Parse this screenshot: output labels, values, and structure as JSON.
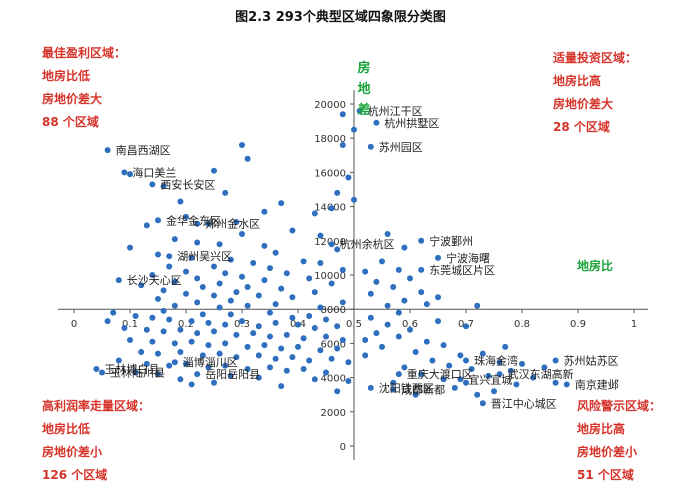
{
  "chart_data": {
    "type": "scatter",
    "title": "图2.3  293个典型区域四象限分类图",
    "xlabel": "地房比",
    "ylabel": "房地差",
    "xlim": [
      0,
      1
    ],
    "ylim": [
      0,
      21000
    ],
    "x_origin_y_value": 8000,
    "y_axis_x_value": 0.5,
    "x_ticks": [
      "0",
      "0.1",
      "0.2",
      "0.3",
      "0.4",
      "0.5",
      "0.6",
      "0.7",
      "0.8",
      "0.9",
      "1"
    ],
    "y_ticks": [
      "0",
      "2000",
      "4000",
      "6000",
      "8000",
      "10000",
      "12000",
      "14000",
      "16000",
      "18000",
      "20000"
    ],
    "color": "#2f6fbf",
    "quadrant_labels": [
      {
        "id": "tl",
        "lines": [
          "最佳盈利区域：",
          "地房比低",
          "房地价差大",
          "88 个区域"
        ]
      },
      {
        "id": "tr",
        "lines": [
          "适量投资区域：",
          "地房比高",
          "房地价差大",
          "28 个区域"
        ]
      },
      {
        "id": "bl",
        "lines": [
          "高利润率走量区域：",
          "地房比低",
          "房地价差小",
          "126 个区域"
        ]
      },
      {
        "id": "br",
        "lines": [
          "风险警示区域：",
          "地房比高",
          "房地价差小",
          "51 个区域"
        ]
      }
    ],
    "labeled_points": [
      {
        "name": "杭州江干区",
        "x": 0.51,
        "y": 19600
      },
      {
        "name": "杭州拱墅区",
        "x": 0.54,
        "y": 18900
      },
      {
        "name": "苏州园区",
        "x": 0.53,
        "y": 17500
      },
      {
        "name": "南昌西湖区",
        "x": 0.06,
        "y": 17300
      },
      {
        "name": "海口美兰",
        "x": 0.09,
        "y": 16000
      },
      {
        "name": "西安长安区",
        "x": 0.14,
        "y": 15300
      },
      {
        "name": "金华金东区",
        "x": 0.15,
        "y": 13200
      },
      {
        "name": "郑州金水区",
        "x": 0.22,
        "y": 13000
      },
      {
        "name": "宁波鄞州",
        "x": 0.62,
        "y": 12000
      },
      {
        "name": "杭州余杭区",
        "x": 0.46,
        "y": 11800
      },
      {
        "name": "宁波海曙",
        "x": 0.65,
        "y": 11000
      },
      {
        "name": "湖州吴兴区",
        "x": 0.17,
        "y": 11100
      },
      {
        "name": "东莞城区片区",
        "x": 0.62,
        "y": 10300
      },
      {
        "name": "长沙天心区",
        "x": 0.08,
        "y": 9700
      },
      {
        "name": "珠海金湾",
        "x": 0.7,
        "y": 5000
      },
      {
        "name": "苏州姑苏区",
        "x": 0.86,
        "y": 5000
      },
      {
        "name": "淄博淄川区",
        "x": 0.18,
        "y": 4900
      },
      {
        "name": "重庆大渡口区",
        "x": 0.58,
        "y": 4200
      },
      {
        "name": "武汉东湖高新",
        "x": 0.76,
        "y": 4200
      },
      {
        "name": "玉林博白县",
        "x": 0.04,
        "y": 4500
      },
      {
        "name": "岳阳岳阳县",
        "x": 0.22,
        "y": 4200
      },
      {
        "name": "宜兴宜城",
        "x": 0.69,
        "y": 3900
      },
      {
        "name": "南京建邺",
        "x": 0.88,
        "y": 3600
      },
      {
        "name": "玉林陆川县",
        "x": 0.05,
        "y": 4300
      },
      {
        "name": "成都新都",
        "x": 0.57,
        "y": 3300
      },
      {
        "name": "沈阳铁西区",
        "x": 0.53,
        "y": 3400
      },
      {
        "name": "晋江中心城区",
        "x": 0.73,
        "y": 2500
      }
    ],
    "points": [
      [
        0.48,
        19400
      ],
      [
        0.5,
        18500
      ],
      [
        0.48,
        17600
      ],
      [
        0.3,
        17600
      ],
      [
        0.31,
        16800
      ],
      [
        0.25,
        16100
      ],
      [
        0.1,
        15900
      ],
      [
        0.49,
        15700
      ],
      [
        0.16,
        15200
      ],
      [
        0.47,
        14800
      ],
      [
        0.27,
        14800
      ],
      [
        0.19,
        14300
      ],
      [
        0.37,
        14200
      ],
      [
        0.5,
        14400
      ],
      [
        0.43,
        13600
      ],
      [
        0.34,
        13700
      ],
      [
        0.46,
        13900
      ],
      [
        0.2,
        13400
      ],
      [
        0.24,
        13000
      ],
      [
        0.29,
        13100
      ],
      [
        0.13,
        12900
      ],
      [
        0.39,
        12600
      ],
      [
        0.44,
        12300
      ],
      [
        0.3,
        12400
      ],
      [
        0.18,
        12100
      ],
      [
        0.22,
        11900
      ],
      [
        0.26,
        11800
      ],
      [
        0.34,
        11700
      ],
      [
        0.1,
        11600
      ],
      [
        0.47,
        11500
      ],
      [
        0.36,
        11300
      ],
      [
        0.15,
        11200
      ],
      [
        0.21,
        11000
      ],
      [
        0.28,
        10900
      ],
      [
        0.41,
        10800
      ],
      [
        0.32,
        10700
      ],
      [
        0.44,
        10700
      ],
      [
        0.17,
        10500
      ],
      [
        0.25,
        10500
      ],
      [
        0.35,
        10400
      ],
      [
        0.48,
        10300
      ],
      [
        0.2,
        10200
      ],
      [
        0.27,
        10100
      ],
      [
        0.38,
        10100
      ],
      [
        0.14,
        10000
      ],
      [
        0.3,
        9900
      ],
      [
        0.22,
        9800
      ],
      [
        0.42,
        9800
      ],
      [
        0.34,
        9700
      ],
      [
        0.18,
        9600
      ],
      [
        0.26,
        9500
      ],
      [
        0.46,
        9500
      ],
      [
        0.12,
        9400
      ],
      [
        0.23,
        9300
      ],
      [
        0.31,
        9300
      ],
      [
        0.37,
        9200
      ],
      [
        0.16,
        9100
      ],
      [
        0.29,
        9000
      ],
      [
        0.43,
        9000
      ],
      [
        0.2,
        8900
      ],
      [
        0.25,
        8800
      ],
      [
        0.33,
        8800
      ],
      [
        0.39,
        8700
      ],
      [
        0.15,
        8600
      ],
      [
        0.28,
        8500
      ],
      [
        0.22,
        8400
      ],
      [
        0.48,
        8400
      ],
      [
        0.36,
        8300
      ],
      [
        0.18,
        8200
      ],
      [
        0.31,
        8200
      ],
      [
        0.44,
        8100
      ],
      [
        0.26,
        8100
      ],
      [
        0.56,
        12400
      ],
      [
        0.59,
        11600
      ],
      [
        0.55,
        10800
      ],
      [
        0.58,
        10300
      ],
      [
        0.6,
        9800
      ],
      [
        0.54,
        9600
      ],
      [
        0.57,
        9300
      ],
      [
        0.62,
        9000
      ],
      [
        0.53,
        8900
      ],
      [
        0.65,
        8700
      ],
      [
        0.59,
        8500
      ],
      [
        0.72,
        8200
      ],
      [
        0.56,
        8200
      ],
      [
        0.63,
        8300
      ],
      [
        0.52,
        10200
      ],
      [
        0.07,
        7800
      ],
      [
        0.11,
        7600
      ],
      [
        0.14,
        7500
      ],
      [
        0.17,
        7400
      ],
      [
        0.21,
        7300
      ],
      [
        0.24,
        7200
      ],
      [
        0.27,
        7100
      ],
      [
        0.3,
        7300
      ],
      [
        0.33,
        7000
      ],
      [
        0.36,
        7200
      ],
      [
        0.4,
        7100
      ],
      [
        0.43,
        6900
      ],
      [
        0.47,
        7000
      ],
      [
        0.09,
        6900
      ],
      [
        0.13,
        6800
      ],
      [
        0.16,
        6700
      ],
      [
        0.19,
        6800
      ],
      [
        0.22,
        6600
      ],
      [
        0.25,
        6700
      ],
      [
        0.29,
        6500
      ],
      [
        0.32,
        6600
      ],
      [
        0.35,
        6400
      ],
      [
        0.38,
        6500
      ],
      [
        0.41,
        6300
      ],
      [
        0.45,
        6400
      ],
      [
        0.48,
        6200
      ],
      [
        0.1,
        6200
      ],
      [
        0.14,
        6100
      ],
      [
        0.18,
        6000
      ],
      [
        0.21,
        6100
      ],
      [
        0.24,
        5900
      ],
      [
        0.27,
        6000
      ],
      [
        0.31,
        5800
      ],
      [
        0.34,
        5900
      ],
      [
        0.37,
        5700
      ],
      [
        0.4,
        5800
      ],
      [
        0.44,
        5600
      ],
      [
        0.47,
        5700
      ],
      [
        0.12,
        5500
      ],
      [
        0.15,
        5400
      ],
      [
        0.19,
        5500
      ],
      [
        0.23,
        5300
      ],
      [
        0.26,
        5400
      ],
      [
        0.29,
        5200
      ],
      [
        0.33,
        5300
      ],
      [
        0.36,
        5100
      ],
      [
        0.39,
        5200
      ],
      [
        0.42,
        5000
      ],
      [
        0.46,
        5100
      ],
      [
        0.49,
        4900
      ],
      [
        0.08,
        5000
      ],
      [
        0.13,
        4800
      ],
      [
        0.17,
        4700
      ],
      [
        0.2,
        4800
      ],
      [
        0.24,
        4600
      ],
      [
        0.27,
        4700
      ],
      [
        0.31,
        4500
      ],
      [
        0.35,
        4600
      ],
      [
        0.38,
        4400
      ],
      [
        0.41,
        4500
      ],
      [
        0.45,
        4300
      ],
      [
        0.11,
        4300
      ],
      [
        0.15,
        4200
      ],
      [
        0.28,
        4100
      ],
      [
        0.33,
        4000
      ],
      [
        0.43,
        3900
      ],
      [
        0.49,
        3800
      ],
      [
        0.19,
        3900
      ],
      [
        0.25,
        3700
      ],
      [
        0.47,
        3200
      ],
      [
        0.37,
        3500
      ],
      [
        0.21,
        3600
      ],
      [
        0.28,
        7700
      ],
      [
        0.16,
        7900
      ],
      [
        0.35,
        7800
      ],
      [
        0.42,
        7600
      ],
      [
        0.06,
        7300
      ],
      [
        0.45,
        7400
      ],
      [
        0.23,
        7700
      ],
      [
        0.39,
        7500
      ],
      [
        0.53,
        7500
      ],
      [
        0.56,
        7100
      ],
      [
        0.6,
        6800
      ],
      [
        0.58,
        6400
      ],
      [
        0.63,
        6100
      ],
      [
        0.66,
        5900
      ],
      [
        0.55,
        5800
      ],
      [
        0.61,
        5500
      ],
      [
        0.69,
        5300
      ],
      [
        0.73,
        5400
      ],
      [
        0.64,
        5000
      ],
      [
        0.76,
        4900
      ],
      [
        0.67,
        4700
      ],
      [
        0.8,
        4800
      ],
      [
        0.71,
        4500
      ],
      [
        0.59,
        4600
      ],
      [
        0.84,
        4600
      ],
      [
        0.78,
        4400
      ],
      [
        0.62,
        4200
      ],
      [
        0.74,
        4100
      ],
      [
        0.66,
        3900
      ],
      [
        0.82,
        4000
      ],
      [
        0.57,
        3700
      ],
      [
        0.7,
        3700
      ],
      [
        0.79,
        3600
      ],
      [
        0.54,
        6600
      ],
      [
        0.52,
        5300
      ],
      [
        0.75,
        3200
      ],
      [
        0.68,
        3400
      ],
      [
        0.61,
        3000
      ],
      [
        0.86,
        3700
      ],
      [
        0.72,
        3000
      ],
      [
        0.65,
        7300
      ],
      [
        0.58,
        7800
      ],
      [
        0.7,
        7000
      ],
      [
        0.77,
        5800
      ],
      [
        0.52,
        6200
      ]
    ]
  }
}
